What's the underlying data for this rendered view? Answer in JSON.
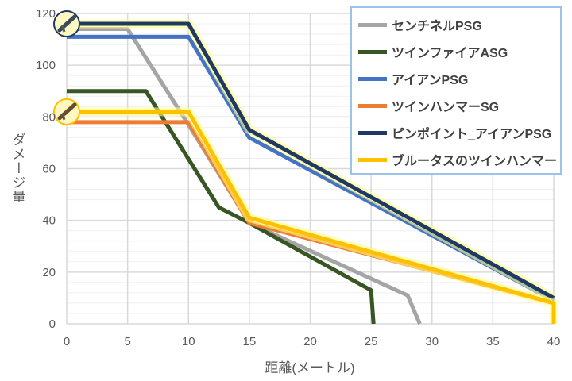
{
  "chart_data": {
    "type": "line",
    "title": "",
    "xlabel": "距離(メートル)",
    "ylabel": "ダメージ量",
    "xlim": [
      0,
      40
    ],
    "ylim": [
      0,
      120
    ],
    "xticks": [
      0,
      5,
      10,
      15,
      20,
      25,
      30,
      35,
      40
    ],
    "yticks": [
      0,
      20,
      40,
      60,
      80,
      100,
      120
    ],
    "grid": true,
    "legend_position": "top-right",
    "series": [
      {
        "name": "センチネルPSG",
        "color": "#a5a5a5",
        "points": [
          [
            0,
            114
          ],
          [
            5,
            114
          ],
          [
            10,
            77
          ],
          [
            15,
            39
          ],
          [
            28,
            11
          ],
          [
            29,
            0
          ]
        ]
      },
      {
        "name": "ツインファイアASG",
        "color": "#375623",
        "points": [
          [
            0,
            90
          ],
          [
            6.5,
            90
          ],
          [
            12.5,
            45
          ],
          [
            15,
            39
          ],
          [
            25,
            13
          ],
          [
            25.2,
            0
          ]
        ]
      },
      {
        "name": "アイアンPSG",
        "color": "#4472c4",
        "points": [
          [
            0,
            111
          ],
          [
            10,
            111
          ],
          [
            15,
            72
          ],
          [
            40,
            9
          ]
        ]
      },
      {
        "name": "ツインハンマーSG",
        "color": "#ed7d31",
        "points": [
          [
            0,
            78
          ],
          [
            10,
            78
          ],
          [
            15,
            39
          ],
          [
            40,
            8
          ]
        ]
      },
      {
        "name": "ピンポイント_アイアンPSG",
        "color": "#203864",
        "glow": true,
        "icon": "rifle-icon",
        "points": [
          [
            0,
            116
          ],
          [
            10,
            116
          ],
          [
            15,
            75
          ],
          [
            40,
            10
          ]
        ]
      },
      {
        "name": "ブルータスのツインハンマー",
        "color": "#ffc000",
        "glow": true,
        "icon": "shotgun-icon",
        "points": [
          [
            0,
            82
          ],
          [
            10,
            82
          ],
          [
            15,
            41
          ],
          [
            40,
            8
          ],
          [
            40,
            0
          ]
        ]
      }
    ]
  }
}
